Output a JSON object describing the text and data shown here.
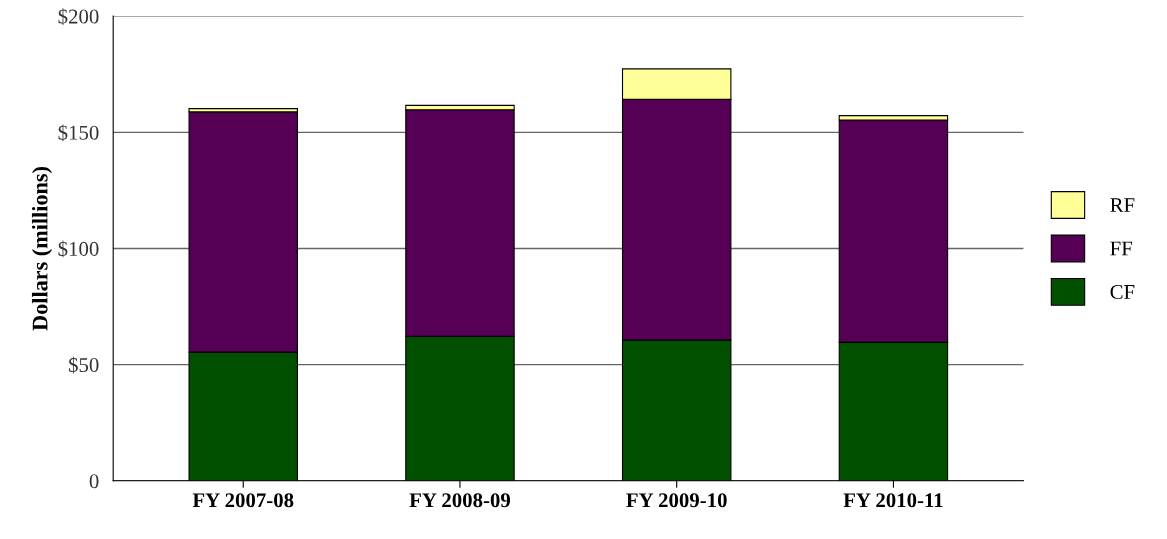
{
  "chart_data": {
    "type": "bar",
    "stacked": true,
    "ylabel": "Dollars (millions)",
    "categories": [
      "FY 2007-08",
      "FY 2008-09",
      "FY 2009-10",
      "FY 2010-11"
    ],
    "series": [
      {
        "name": "CF",
        "color": "#005000",
        "values": [
          55.4,
          62.2,
          60.6,
          59.6
        ]
      },
      {
        "name": "FF",
        "color": "#550055",
        "values": [
          103.4,
          97.5,
          103.6,
          95.7
        ]
      },
      {
        "name": "RF",
        "color": "#ffff99",
        "values": [
          1.4,
          1.9,
          13.1,
          1.9
        ]
      }
    ],
    "ylim": [
      0,
      200
    ],
    "yticks": [
      {
        "value": 0,
        "label": "0"
      },
      {
        "value": 50,
        "label": "$50"
      },
      {
        "value": 100,
        "label": "$100"
      },
      {
        "value": 150,
        "label": "$150"
      },
      {
        "value": 200,
        "label": "$200"
      }
    ],
    "grid": "y",
    "legend": "right"
  }
}
